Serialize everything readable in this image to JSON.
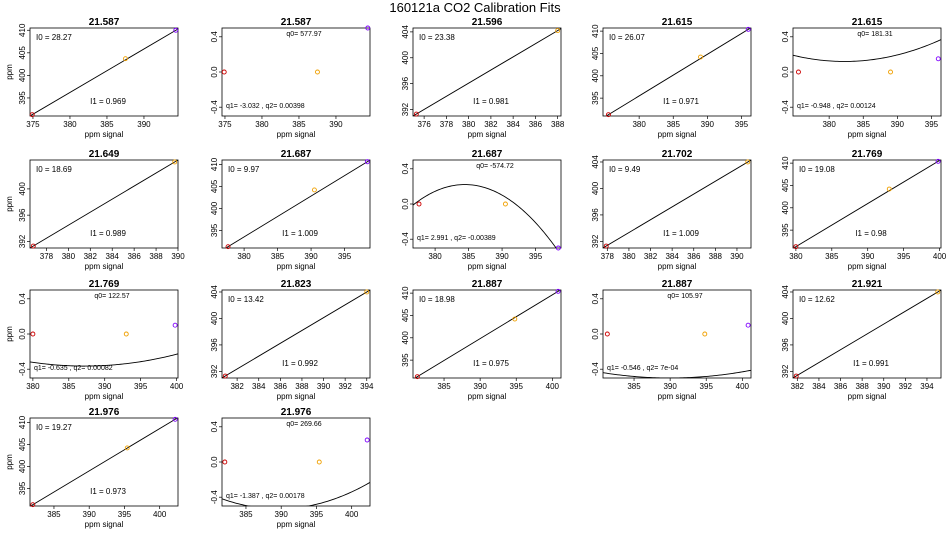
{
  "title": "160121a   CO2 Calibration Fits",
  "colors": {
    "axis": "#000000",
    "curve": "#000000",
    "point_low": "#cc0000",
    "point_mid": "#f0a000",
    "point_high": "#7f00ff"
  },
  "chart_data": [
    {
      "type": "line",
      "fit": "linear",
      "title": "21.587",
      "xlabel": "ppm signal",
      "ylabel": "ppm",
      "xlim": [
        374.6,
        394.6
      ],
      "ylim": [
        391.0,
        410.5
      ],
      "xticks": [
        "375",
        "380",
        "385",
        "390"
      ],
      "xtick_values": [
        375,
        380,
        385,
        390
      ],
      "yticks": [
        "395",
        "400",
        "405",
        "410"
      ],
      "ytick_values": [
        395,
        400,
        405,
        410
      ],
      "annot_top": "I0 = 28.27",
      "annot_bottom": "I1 = 0.969",
      "points": [
        {
          "x": 374.9,
          "y": 391.3
        },
        {
          "x": 387.5,
          "y": 403.7
        },
        {
          "x": 394.3,
          "y": 410.0
        }
      ]
    },
    {
      "type": "line",
      "fit": "quadratic",
      "title": "21.587",
      "xlabel": "ppm signal",
      "ylabel": "",
      "xlim": [
        374.6,
        394.6
      ],
      "ylim": [
        -0.5,
        0.5
      ],
      "xticks": [
        "375",
        "380",
        "385",
        "390"
      ],
      "xtick_values": [
        375,
        380,
        385,
        390
      ],
      "yticks": [
        "-0.4",
        "0.0",
        "0.4"
      ],
      "ytick_values": [
        -0.4,
        0,
        0.4
      ],
      "annot_top": "q0= 577.97",
      "annot_bottom": "q1= -3.032 , q2= 0.00398",
      "curve": {
        "q0": 577.97,
        "q1": -3.032,
        "q2": 0.00398
      },
      "points": [
        {
          "x": 374.9,
          "y": 0.0
        },
        {
          "x": 387.5,
          "y": 0.0
        },
        {
          "x": 394.3,
          "y": 0.5
        }
      ]
    },
    {
      "type": "line",
      "fit": "linear",
      "title": "21.596",
      "xlabel": "ppm signal",
      "ylabel": "",
      "xlim": [
        375.0,
        388.3
      ],
      "ylim": [
        391.0,
        404.6
      ],
      "xticks": [
        "376",
        "378",
        "380",
        "382",
        "384",
        "386",
        "388"
      ],
      "xtick_values": [
        376,
        378,
        380,
        382,
        384,
        386,
        388
      ],
      "yticks": [
        "392",
        "396",
        "400",
        "404"
      ],
      "ytick_values": [
        392,
        396,
        400,
        404
      ],
      "annot_top": "I0 = 23.38",
      "annot_bottom": "I1 = 0.981",
      "points": [
        {
          "x": 375.3,
          "y": 391.3
        },
        {
          "x": 388.0,
          "y": 404.2
        }
      ]
    },
    {
      "type": "line",
      "fit": "linear",
      "title": "21.615",
      "xlabel": "ppm signal",
      "ylabel": "",
      "xlim": [
        374.7,
        396.4
      ],
      "ylim": [
        391.0,
        410.7
      ],
      "xticks": [
        "380",
        "385",
        "390",
        "395"
      ],
      "xtick_values": [
        380,
        385,
        390,
        395
      ],
      "yticks": [
        "395",
        "400",
        "405",
        "410"
      ],
      "ytick_values": [
        395,
        400,
        405,
        410
      ],
      "annot_top": "I0 = 26.07",
      "annot_bottom": "I1 = 0.971",
      "points": [
        {
          "x": 375.5,
          "y": 391.3
        },
        {
          "x": 389.0,
          "y": 404.2
        },
        {
          "x": 396.0,
          "y": 410.4
        }
      ]
    },
    {
      "type": "line",
      "fit": "quadratic",
      "title": "21.615",
      "xlabel": "ppm signal",
      "ylabel": "",
      "xlim": [
        374.7,
        396.4
      ],
      "ylim": [
        -0.5,
        0.5
      ],
      "xticks": [
        "380",
        "385",
        "390",
        "395"
      ],
      "xtick_values": [
        380,
        385,
        390,
        395
      ],
      "yticks": [
        "-0.4",
        "0.0",
        "0.4"
      ],
      "ytick_values": [
        -0.4,
        0,
        0.4
      ],
      "annot_top": "q0= 181.31",
      "annot_bottom": "q1= -0.948 , q2= 0.00124",
      "curve": {
        "q0": 181.31,
        "q1": -0.948,
        "q2": 0.00124
      },
      "points": [
        {
          "x": 375.5,
          "y": 0.0
        },
        {
          "x": 389.0,
          "y": 0.0
        },
        {
          "x": 396.0,
          "y": 0.15
        }
      ]
    },
    {
      "type": "line",
      "fit": "linear",
      "title": "21.649",
      "xlabel": "ppm signal",
      "ylabel": "ppm",
      "xlim": [
        376.5,
        390.0
      ],
      "ylim": [
        391.0,
        404.4
      ],
      "xticks": [
        "378",
        "380",
        "382",
        "384",
        "386",
        "388",
        "390"
      ],
      "xtick_values": [
        378,
        380,
        382,
        384,
        386,
        388,
        390
      ],
      "yticks": [
        "392",
        "396",
        "400"
      ],
      "ytick_values": [
        392,
        396,
        400
      ],
      "annot_top": "I0 = 18.69",
      "annot_bottom": "I1 = 0.989",
      "points": [
        {
          "x": 376.8,
          "y": 391.3
        },
        {
          "x": 389.7,
          "y": 404.1
        }
      ]
    },
    {
      "type": "line",
      "fit": "linear",
      "title": "21.687",
      "xlabel": "ppm signal",
      "ylabel": "",
      "xlim": [
        376.7,
        398.8
      ],
      "ylim": [
        391.0,
        411.0
      ],
      "xticks": [
        "380",
        "385",
        "390",
        "395"
      ],
      "xtick_values": [
        380,
        385,
        390,
        395
      ],
      "yticks": [
        "395",
        "400",
        "405",
        "410"
      ],
      "ytick_values": [
        395,
        400,
        405,
        410
      ],
      "annot_top": "I0 = 9.97",
      "annot_bottom": "I1 = 1.009",
      "points": [
        {
          "x": 377.6,
          "y": 391.3
        },
        {
          "x": 390.5,
          "y": 404.2
        },
        {
          "x": 398.4,
          "y": 410.6
        }
      ]
    },
    {
      "type": "line",
      "fit": "quadratic",
      "title": "21.687",
      "xlabel": "ppm signal",
      "ylabel": "",
      "xlim": [
        376.7,
        398.8
      ],
      "ylim": [
        -0.5,
        0.5
      ],
      "xticks": [
        "380",
        "385",
        "390",
        "395"
      ],
      "xtick_values": [
        380,
        385,
        390,
        395
      ],
      "yticks": [
        "-0.4",
        "0.0",
        "0.4"
      ],
      "ytick_values": [
        -0.4,
        0,
        0.4
      ],
      "annot_top": "q0= -574.72",
      "annot_bottom": "q1= 2.991 , q2= -0.00389",
      "curve": {
        "q0": -574.72,
        "q1": 2.991,
        "q2": -0.00389
      },
      "points": [
        {
          "x": 377.6,
          "y": 0.0
        },
        {
          "x": 390.5,
          "y": 0.0
        },
        {
          "x": 398.4,
          "y": -0.5
        }
      ]
    },
    {
      "type": "line",
      "fit": "linear",
      "title": "21.702",
      "xlabel": "ppm signal",
      "ylabel": "",
      "xlim": [
        377.6,
        391.3
      ],
      "ylim": [
        391.0,
        404.3
      ],
      "xticks": [
        "378",
        "380",
        "382",
        "384",
        "386",
        "388",
        "390"
      ],
      "xtick_values": [
        378,
        380,
        382,
        384,
        386,
        388,
        390
      ],
      "yticks": [
        "392",
        "396",
        "400",
        "404"
      ],
      "ytick_values": [
        392,
        396,
        400,
        404
      ],
      "annot_top": "I0 = 9.49",
      "annot_bottom": "I1 = 1.009",
      "points": [
        {
          "x": 377.9,
          "y": 391.3
        },
        {
          "x": 391.0,
          "y": 404.0
        }
      ]
    },
    {
      "type": "line",
      "fit": "linear",
      "title": "21.769",
      "xlabel": "ppm signal",
      "ylabel": "",
      "xlim": [
        379.6,
        400.2
      ],
      "ylim": [
        391.0,
        410.7
      ],
      "xticks": [
        "380",
        "385",
        "390",
        "395",
        "400"
      ],
      "xtick_values": [
        380,
        385,
        390,
        395,
        400
      ],
      "yticks": [
        "395",
        "400",
        "405",
        "410"
      ],
      "ytick_values": [
        395,
        400,
        405,
        410
      ],
      "annot_top": "I0 = 19.08",
      "annot_bottom": "I1 = 0.98",
      "points": [
        {
          "x": 380.0,
          "y": 391.3
        },
        {
          "x": 393.0,
          "y": 404.2
        },
        {
          "x": 399.8,
          "y": 410.4
        }
      ]
    },
    {
      "type": "line",
      "fit": "quadratic",
      "title": "21.769",
      "xlabel": "ppm signal",
      "ylabel": "ppm",
      "xlim": [
        379.6,
        400.2
      ],
      "ylim": [
        -0.5,
        0.5
      ],
      "xticks": [
        "380",
        "385",
        "390",
        "395",
        "400"
      ],
      "xtick_values": [
        380,
        385,
        390,
        395,
        400
      ],
      "yticks": [
        "-0.4",
        "0.0",
        "0.4"
      ],
      "ytick_values": [
        -0.4,
        0,
        0.4
      ],
      "annot_top": "q0= 122.57",
      "annot_bottom": "q1= -0.635 , q2= 0.00082",
      "curve": {
        "q0": 122.57,
        "q1": -0.635,
        "q2": 0.00082
      },
      "points": [
        {
          "x": 380.0,
          "y": 0.0
        },
        {
          "x": 393.0,
          "y": 0.0
        },
        {
          "x": 399.8,
          "y": 0.1
        }
      ]
    },
    {
      "type": "line",
      "fit": "linear",
      "title": "21.823",
      "xlabel": "ppm signal",
      "ylabel": "",
      "xlim": [
        380.6,
        394.3
      ],
      "ylim": [
        391.0,
        404.3
      ],
      "xticks": [
        "382",
        "384",
        "386",
        "388",
        "390",
        "392",
        "394"
      ],
      "xtick_values": [
        382,
        384,
        386,
        388,
        390,
        392,
        394
      ],
      "yticks": [
        "392",
        "396",
        "400",
        "404"
      ],
      "ytick_values": [
        392,
        396,
        400,
        404
      ],
      "annot_top": "I0 = 13.42",
      "annot_bottom": "I1 = 0.992",
      "points": [
        {
          "x": 380.9,
          "y": 391.3
        },
        {
          "x": 394.0,
          "y": 404.0
        }
      ]
    },
    {
      "type": "line",
      "fit": "linear",
      "title": "21.887",
      "xlabel": "ppm signal",
      "ylabel": "",
      "xlim": [
        380.7,
        401.2
      ],
      "ylim": [
        391.0,
        410.7
      ],
      "xticks": [
        "385",
        "390",
        "395",
        "400"
      ],
      "xtick_values": [
        385,
        390,
        395,
        400
      ],
      "yticks": [
        "395",
        "400",
        "405",
        "410"
      ],
      "ytick_values": [
        395,
        400,
        405,
        410
      ],
      "annot_top": "I0 = 18.98",
      "annot_bottom": "I1 = 0.975",
      "points": [
        {
          "x": 381.3,
          "y": 391.3
        },
        {
          "x": 394.8,
          "y": 404.2
        },
        {
          "x": 400.8,
          "y": 410.4
        }
      ]
    },
    {
      "type": "line",
      "fit": "quadratic",
      "title": "21.887",
      "xlabel": "ppm signal",
      "ylabel": "",
      "xlim": [
        380.7,
        401.2
      ],
      "ylim": [
        -0.5,
        0.5
      ],
      "xticks": [
        "385",
        "390",
        "395",
        "400"
      ],
      "xtick_values": [
        385,
        390,
        395,
        400
      ],
      "yticks": [
        "-0.4",
        "0.0",
        "0.4"
      ],
      "ytick_values": [
        -0.4,
        0,
        0.4
      ],
      "annot_top": "q0= 105.97",
      "annot_bottom": "q1= -0.546 , q2= 7e-04",
      "curve": {
        "q0": 105.97,
        "q1": -0.546,
        "q2": 0.0007
      },
      "points": [
        {
          "x": 381.3,
          "y": 0.0
        },
        {
          "x": 394.8,
          "y": 0.0
        },
        {
          "x": 400.8,
          "y": 0.1
        }
      ]
    },
    {
      "type": "line",
      "fit": "linear",
      "title": "21.921",
      "xlabel": "ppm signal",
      "ylabel": "",
      "xlim": [
        381.6,
        395.3
      ],
      "ylim": [
        391.0,
        404.3
      ],
      "xticks": [
        "382",
        "384",
        "386",
        "388",
        "390",
        "392",
        "394"
      ],
      "xtick_values": [
        382,
        384,
        386,
        388,
        390,
        392,
        394
      ],
      "yticks": [
        "392",
        "396",
        "400",
        "404"
      ],
      "ytick_values": [
        392,
        396,
        400,
        404
      ],
      "annot_top": "I0 = 12.62",
      "annot_bottom": "I1 = 0.991",
      "points": [
        {
          "x": 381.9,
          "y": 391.3
        },
        {
          "x": 395.0,
          "y": 404.0
        }
      ]
    },
    {
      "type": "line",
      "fit": "linear",
      "title": "21.976",
      "xlabel": "ppm signal",
      "ylabel": "ppm",
      "xlim": [
        381.6,
        402.6
      ],
      "ylim": [
        391.0,
        411.0
      ],
      "xticks": [
        "385",
        "390",
        "395",
        "400"
      ],
      "xtick_values": [
        385,
        390,
        395,
        400
      ],
      "yticks": [
        "395",
        "400",
        "405",
        "410"
      ],
      "ytick_values": [
        395,
        400,
        405,
        410
      ],
      "annot_top": "I0 = 19.27",
      "annot_bottom": "I1 = 0.973",
      "points": [
        {
          "x": 382.0,
          "y": 391.3
        },
        {
          "x": 395.4,
          "y": 404.2
        },
        {
          "x": 402.2,
          "y": 410.7
        }
      ]
    },
    {
      "type": "line",
      "fit": "quadratic",
      "title": "21.976",
      "xlabel": "ppm signal",
      "ylabel": "",
      "xlim": [
        381.6,
        402.6
      ],
      "ylim": [
        -0.5,
        0.5
      ],
      "xticks": [
        "385",
        "390",
        "395",
        "400"
      ],
      "xtick_values": [
        385,
        390,
        395,
        400
      ],
      "yticks": [
        "-0.4",
        "0.0",
        "0.4"
      ],
      "ytick_values": [
        -0.4,
        0,
        0.4
      ],
      "annot_top": "q0= 269.66",
      "annot_bottom": "q1= -1.387 , q2= 0.00178",
      "curve": {
        "q0": 269.66,
        "q1": -1.387,
        "q2": 0.00178
      },
      "points": [
        {
          "x": 382.0,
          "y": 0.0
        },
        {
          "x": 395.4,
          "y": 0.0
        },
        {
          "x": 402.2,
          "y": 0.25
        }
      ]
    }
  ]
}
